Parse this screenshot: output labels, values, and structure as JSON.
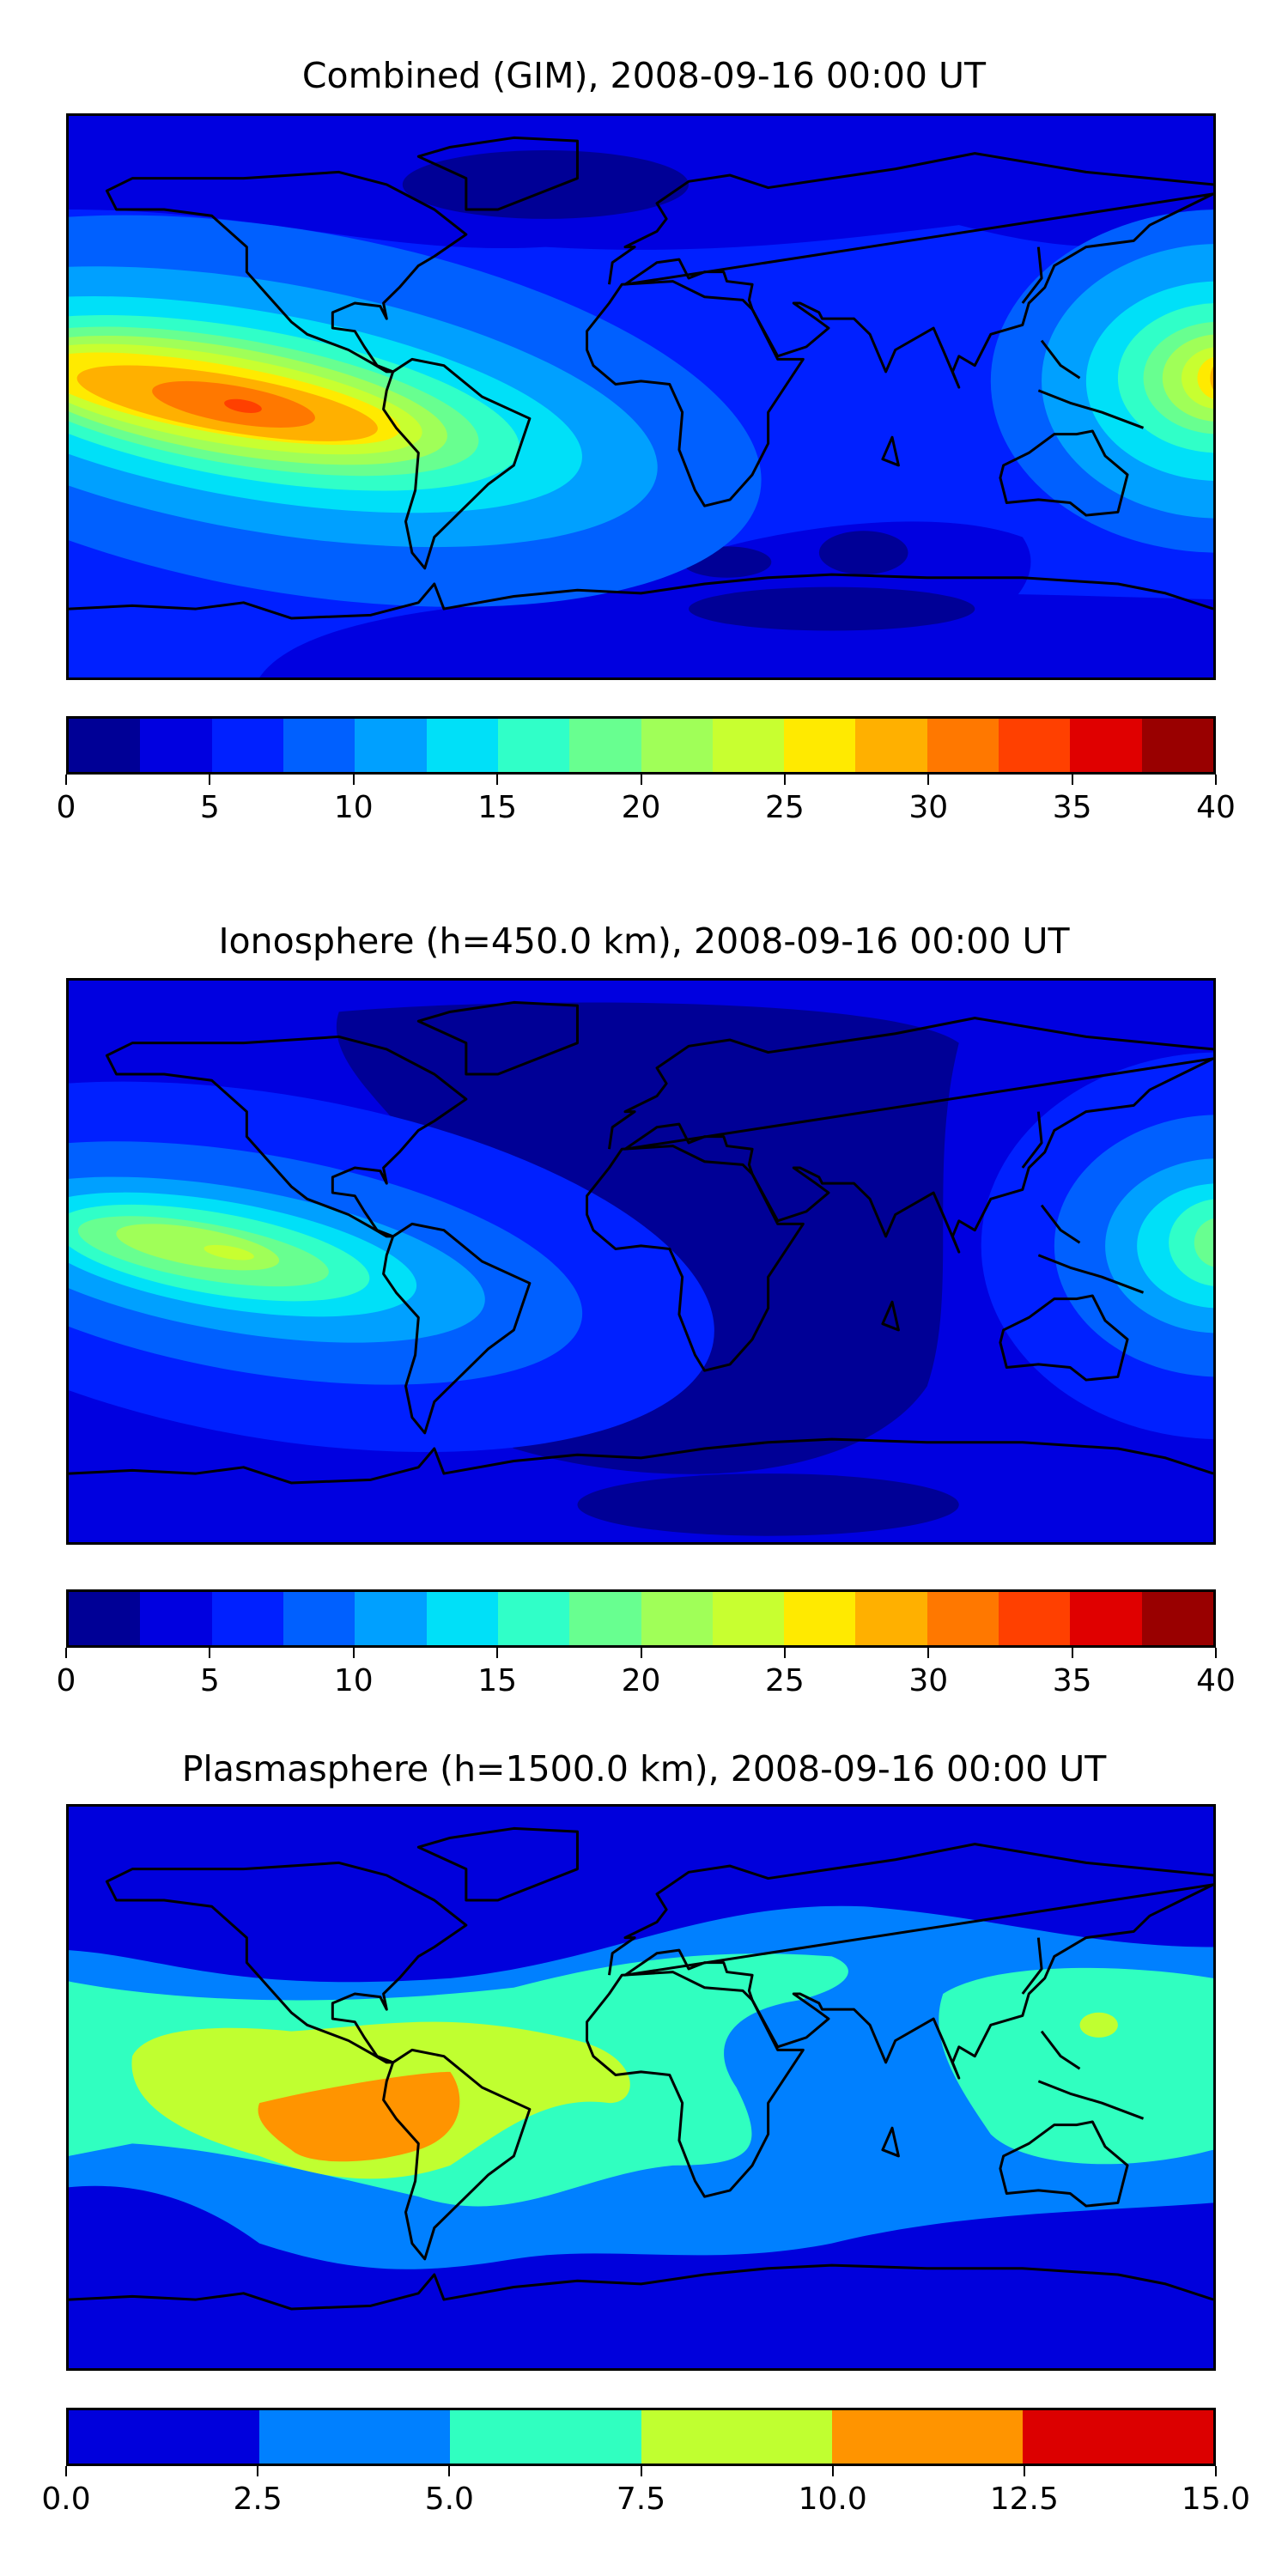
{
  "chart_data": [
    {
      "type": "heatmap",
      "subtype": "filled-contour world map",
      "title": "Combined (GIM), 2008-09-16 00:00 UT",
      "colorbar": {
        "ticks": [
          "0",
          "5",
          "10",
          "15",
          "20",
          "25",
          "30",
          "35",
          "40"
        ],
        "range": [
          0,
          40
        ],
        "levels": [
          0,
          2.5,
          5,
          7.5,
          10,
          12.5,
          15,
          17.5,
          20,
          22.5,
          25,
          27.5,
          30,
          32.5,
          35,
          37.5,
          40
        ],
        "colors": [
          "#000096",
          "#0000e0",
          "#0020ff",
          "#0060ff",
          "#00a0ff",
          "#00e0f8",
          "#30ffc8",
          "#68ff90",
          "#a0ff58",
          "#c8ff30",
          "#ffea00",
          "#ffb000",
          "#ff7800",
          "#ff4000",
          "#e00000",
          "#990000"
        ]
      },
      "lon_range": [
        -180,
        180
      ],
      "lat_range": [
        -90,
        90
      ],
      "features": [
        {
          "name": "pacific-maximum",
          "lon": -128,
          "lat": -4,
          "value_range": [
            32.5,
            35
          ]
        },
        {
          "name": "west-pacific-maximum",
          "lon": 178,
          "lat": 7,
          "value_range": [
            27.5,
            30
          ]
        }
      ]
    },
    {
      "type": "heatmap",
      "subtype": "filled-contour world map",
      "title": "Ionosphere  (h=450.0 km), 2008-09-16 00:00 UT",
      "colorbar": {
        "ticks": [
          "0",
          "5",
          "10",
          "15",
          "20",
          "25",
          "30",
          "35",
          "40"
        ],
        "range": [
          0,
          40
        ],
        "levels": [
          0,
          2.5,
          5,
          7.5,
          10,
          12.5,
          15,
          17.5,
          20,
          22.5,
          25,
          27.5,
          30,
          32.5,
          35,
          37.5,
          40
        ],
        "colors": [
          "#000096",
          "#0000e0",
          "#0020ff",
          "#0060ff",
          "#00a0ff",
          "#00e0f8",
          "#30ffc8",
          "#68ff90",
          "#a0ff58",
          "#c8ff30",
          "#ffea00",
          "#ffb000",
          "#ff7800",
          "#ff4000",
          "#e00000",
          "#990000"
        ]
      },
      "lon_range": [
        -180,
        180
      ],
      "lat_range": [
        -90,
        90
      ],
      "features": [
        {
          "name": "pacific-maximum",
          "lon": -130,
          "lat": 2,
          "value_range": [
            22.5,
            25
          ]
        },
        {
          "name": "west-pacific-maximum",
          "lon": 178,
          "lat": 7,
          "value_range": [
            17.5,
            20
          ]
        }
      ]
    },
    {
      "type": "heatmap",
      "subtype": "filled-contour world map",
      "title": "Plasmasphere (h=1500.0 km), 2008-09-16 00:00 UT",
      "colorbar": {
        "ticks": [
          "0.0",
          "2.5",
          "5.0",
          "7.5",
          "10.0",
          "12.5",
          "15.0"
        ],
        "range": [
          0,
          15
        ],
        "levels": [
          0,
          2.5,
          5,
          7.5,
          10,
          12.5,
          15
        ],
        "colors": [
          "#0000dc",
          "#0080ff",
          "#30ffc0",
          "#c0ff30",
          "#ff9400",
          "#dc0000"
        ]
      },
      "lon_range": [
        -180,
        180
      ],
      "lat_range": [
        -90,
        90
      ],
      "features": [
        {
          "name": "south-america-maximum",
          "lon": -80,
          "lat": -3,
          "value_range": [
            10,
            12.5
          ]
        }
      ]
    }
  ]
}
